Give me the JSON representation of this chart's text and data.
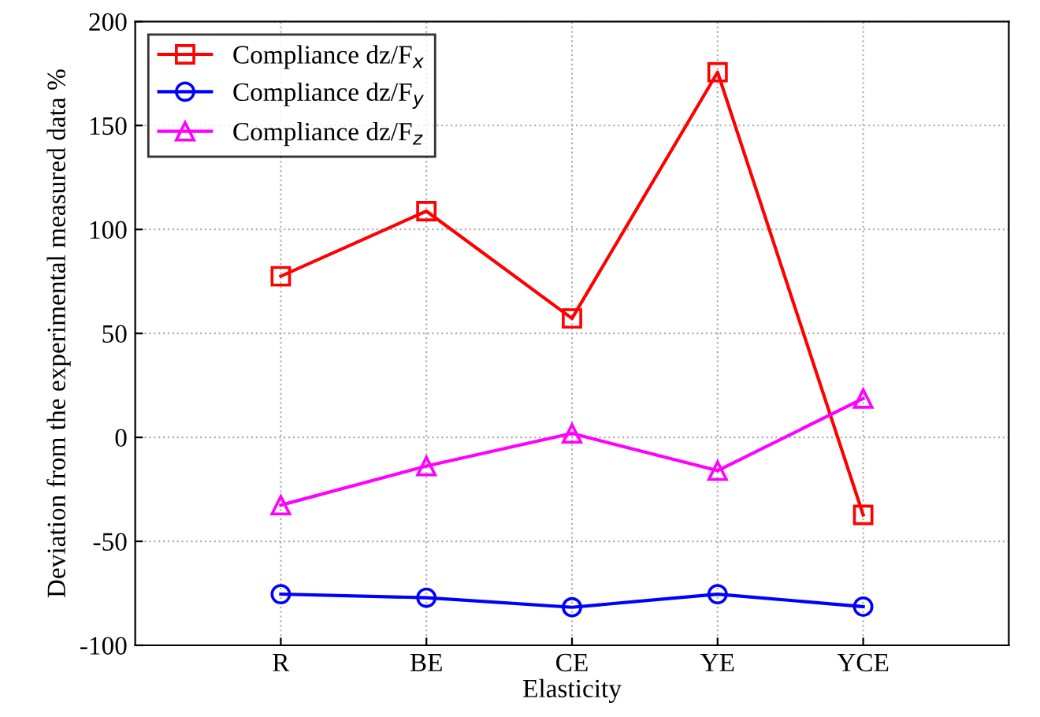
{
  "chart_data": {
    "type": "line",
    "xlabel": "Elasticity",
    "ylabel": "Deviation from the experimental measured data %",
    "categories": [
      "R",
      "BE",
      "CE",
      "YE",
      "YCE"
    ],
    "series": [
      {
        "name": "Compliance dz/F$_{x}$",
        "color": "#ff0000",
        "marker": "square",
        "values": [
          77.5,
          108.8,
          57.2,
          175.6,
          -37.3
        ]
      },
      {
        "name": "Compliance dz/F$_{y}$",
        "color": "#0000ff",
        "marker": "circle",
        "values": [
          -75.4,
          -77.1,
          -81.7,
          -75.4,
          -81.4
        ]
      },
      {
        "name": "Compliance dz/F$_{z}$",
        "color": "#ff00ff",
        "marker": "triangle",
        "values": [
          -32.6,
          -13.8,
          1.9,
          -16.0,
          18.7
        ]
      }
    ],
    "ylim": [
      -100,
      200
    ],
    "yticks": [
      -100,
      -50,
      0,
      50,
      100,
      150,
      200
    ],
    "grid": true,
    "legend": "top left",
    "line_style": "solid"
  }
}
